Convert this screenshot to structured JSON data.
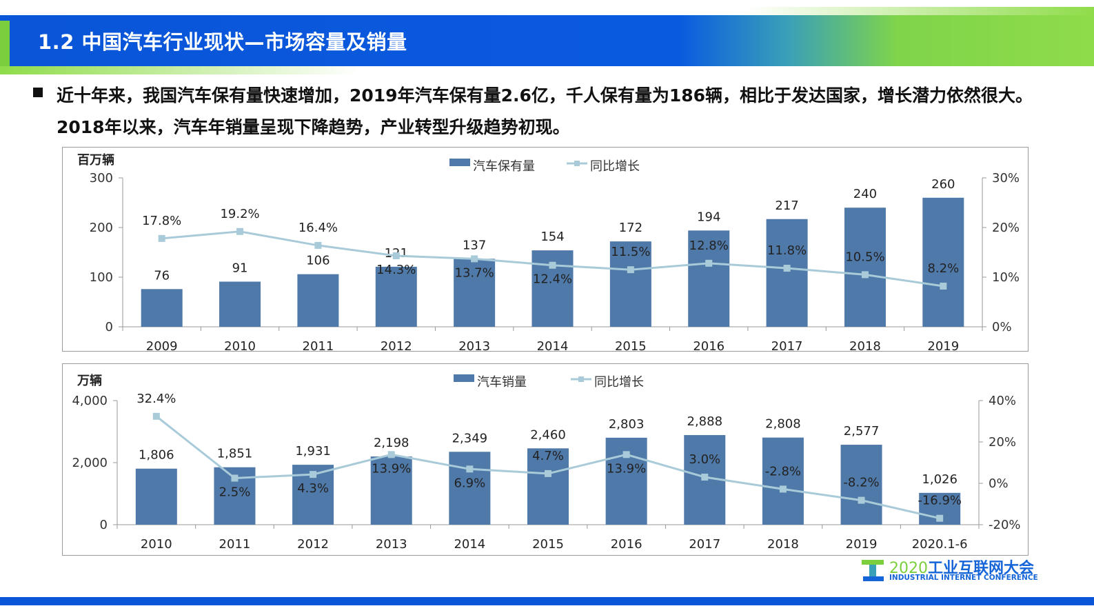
{
  "header": {
    "title": "1.2 中国汽车行业现状—市场容量及销量"
  },
  "summary": {
    "text": "近十年来，我国汽车保有量快速增加，2019年汽车保有量2.6亿，千人保有量为186辆，相比于发达国家，增长潜力依然很大。2018年以来，汽车年销量呈现下降趋势，产业转型升级趋势初现。"
  },
  "watermark": "2020 工业互联网大会 INDUSTRIAL INTERNET CONFERENCE",
  "logo": {
    "cn_prefix": "2020",
    "cn": "工业互联网大会",
    "en": "INDUSTRIAL INTERNET CONFERENCE"
  },
  "colors": {
    "bar": "#4f79a8",
    "line": "#a9cbd9",
    "header_blue": "#0a55d8",
    "header_green": "#8fdc4a"
  },
  "chart_data": [
    {
      "type": "bar+line",
      "ylabel": "百万辆",
      "categories": [
        "2009",
        "2010",
        "2011",
        "2012",
        "2013",
        "2014",
        "2015",
        "2016",
        "2017",
        "2018",
        "2019"
      ],
      "series": [
        {
          "name": "汽车保有量",
          "type": "bar",
          "axis": "left",
          "values": [
            76,
            91,
            106,
            121,
            137,
            154,
            172,
            194,
            217,
            240,
            260
          ],
          "labels": [
            "76",
            "91",
            "106",
            "121",
            "137",
            "154",
            "172",
            "194",
            "217",
            "240",
            "260"
          ]
        },
        {
          "name": "同比增长",
          "type": "line",
          "axis": "right",
          "values": [
            17.8,
            19.2,
            16.4,
            14.3,
            13.7,
            12.4,
            11.5,
            12.8,
            11.8,
            10.5,
            8.2
          ],
          "labels": [
            "17.8%",
            "19.2%",
            "16.4%",
            "14.3%",
            "13.7%",
            "12.4%",
            "11.5%",
            "12.8%",
            "11.8%",
            "10.5%",
            "8.2%"
          ]
        }
      ],
      "yleft": {
        "range": [
          0,
          300
        ],
        "ticks": [
          "0",
          "100",
          "200",
          "300"
        ]
      },
      "yright": {
        "range": [
          0,
          30
        ],
        "ticks": [
          "0%",
          "10%",
          "20%",
          "30%"
        ]
      },
      "legend": "top-center",
      "grid": false
    },
    {
      "type": "bar+line",
      "ylabel": "万辆",
      "categories": [
        "2010",
        "2011",
        "2012",
        "2013",
        "2014",
        "2015",
        "2016",
        "2017",
        "2018",
        "2019",
        "2020.1-6"
      ],
      "series": [
        {
          "name": "汽车销量",
          "type": "bar",
          "axis": "left",
          "values": [
            1806,
            1851,
            1931,
            2198,
            2349,
            2460,
            2803,
            2888,
            2808,
            2577,
            1026
          ],
          "labels": [
            "1,806",
            "1,851",
            "1,931",
            "2,198",
            "2,349",
            "2,460",
            "2,803",
            "2,888",
            "2,808",
            "2,577",
            "1,026"
          ]
        },
        {
          "name": "同比增长",
          "type": "line",
          "axis": "right",
          "values": [
            32.4,
            2.5,
            4.3,
            13.9,
            6.9,
            4.7,
            13.9,
            3.0,
            -2.8,
            -8.2,
            -16.9
          ],
          "labels": [
            "32.4%",
            "2.5%",
            "4.3%",
            "13.9%",
            "6.9%",
            "4.7%",
            "13.9%",
            "3.0%",
            "-2.8%",
            "-8.2%",
            "-16.9%"
          ]
        }
      ],
      "yleft": {
        "range": [
          0,
          4000
        ],
        "ticks": [
          "0",
          "2,000",
          "4,000"
        ]
      },
      "yright": {
        "range": [
          -20,
          40
        ],
        "ticks": [
          "-20%",
          "0%",
          "20%",
          "40%"
        ]
      },
      "legend": "top-center",
      "grid": false
    }
  ]
}
